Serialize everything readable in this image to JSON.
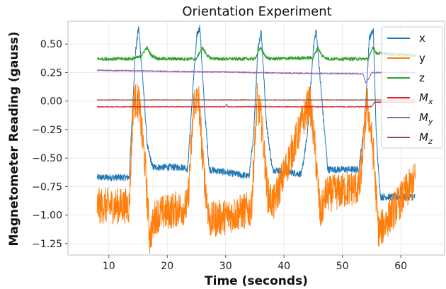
{
  "chart_data": {
    "type": "line",
    "title": "Orientation Experiment",
    "xlabel": "Time (seconds)",
    "ylabel": "Magnetometer Reading (gauss)",
    "xlim": [
      3,
      67.5
    ],
    "ylim": [
      -1.35,
      0.7
    ],
    "xticks": [
      10,
      20,
      30,
      40,
      50,
      60
    ],
    "yticks": [
      -1.25,
      -1.0,
      -0.75,
      -0.5,
      -0.25,
      0.0,
      0.25,
      0.5
    ],
    "ytick_labels": [
      "−1.25",
      "−1.00",
      "−0.75",
      "−0.50",
      "−0.25",
      "0.00",
      "0.25",
      "0.50"
    ],
    "grid": true,
    "legend_position": "top-right",
    "series": [
      {
        "name": "x",
        "color": "#1f77b4",
        "noise": 0.03,
        "x": [
          8,
          13.5,
          14.5,
          15.1,
          15.8,
          16.6,
          17.5,
          23,
          23.5,
          24.5,
          25.1,
          25.6,
          26.3,
          27.2,
          34,
          34.8,
          35.5,
          36.1,
          37,
          38,
          43,
          44,
          45,
          45.5,
          46.5,
          47.5,
          52.8,
          53.8,
          54.6,
          55.3,
          55.8,
          56.5,
          62.5
        ],
        "y": [
          -0.67,
          -0.67,
          0.4,
          0.65,
          0.2,
          -0.4,
          -0.58,
          -0.58,
          -0.6,
          0.2,
          0.58,
          0.65,
          0.0,
          -0.6,
          -0.66,
          -0.3,
          0.45,
          0.62,
          -0.2,
          -0.6,
          -0.64,
          -0.3,
          0.45,
          0.63,
          0.0,
          -0.6,
          -0.6,
          -0.2,
          0.55,
          0.62,
          -0.3,
          -0.84,
          -0.84
        ]
      },
      {
        "name": "y",
        "color": "#ff7f0e",
        "noise": 0.16,
        "x": [
          8,
          13.5,
          14.2,
          15.1,
          16.2,
          17,
          18,
          23.5,
          24.6,
          25.4,
          26.2,
          27.2,
          34.4,
          35.4,
          36.2,
          37.2,
          38.2,
          44.4,
          45.2,
          46.2,
          47.2,
          53,
          54.2,
          55.2,
          56.2,
          62.5
        ],
        "y": [
          -0.92,
          -0.92,
          0.0,
          0.0,
          -0.55,
          -1.2,
          -1.0,
          -0.92,
          0.0,
          0.0,
          -0.6,
          -1.05,
          -0.95,
          0.0,
          -0.2,
          -0.82,
          -0.9,
          0.0,
          -0.35,
          -1.0,
          -0.82,
          -0.75,
          0.0,
          -0.4,
          -1.15,
          -0.68
        ]
      },
      {
        "name": "z",
        "color": "#2ca02c",
        "noise": 0.015,
        "x": [
          8,
          14,
          15.5,
          16.5,
          17.3,
          18.5,
          25,
          26,
          26.6,
          27.2,
          28.5,
          35,
          36,
          36.7,
          37.5,
          45,
          45.8,
          46.5,
          47.5,
          54.5,
          55.2,
          55.8,
          62.5
        ],
        "y": [
          0.37,
          0.37,
          0.39,
          0.47,
          0.4,
          0.37,
          0.37,
          0.47,
          0.42,
          0.38,
          0.37,
          0.37,
          0.47,
          0.4,
          0.37,
          0.38,
          0.47,
          0.4,
          0.37,
          0.37,
          0.48,
          0.42,
          0.4
        ]
      },
      {
        "name": "M_x",
        "color": "#d62728",
        "noise": 0.004,
        "x": [
          8,
          30,
          30.2,
          30.4,
          55,
          55.5,
          62.5
        ],
        "y": [
          -0.05,
          -0.05,
          -0.03,
          -0.05,
          -0.05,
          -0.01,
          -0.01
        ]
      },
      {
        "name": "M_y",
        "color": "#9467bd",
        "noise": 0.006,
        "x": [
          8,
          20,
          30,
          40,
          53.5,
          54,
          54.5,
          55,
          62.5
        ],
        "y": [
          0.27,
          0.26,
          0.255,
          0.245,
          0.24,
          0.16,
          0.2,
          0.25,
          0.25
        ]
      },
      {
        "name": "M_z",
        "color": "#8c564b",
        "noise": 0.003,
        "x": [
          8,
          62.5
        ],
        "y": [
          0.01,
          0.01
        ]
      }
    ]
  }
}
